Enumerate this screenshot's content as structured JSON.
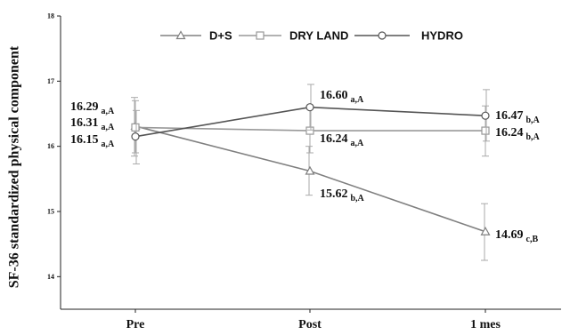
{
  "chart_data": {
    "type": "line",
    "categories": [
      "Pre",
      "Post",
      "1 mes"
    ],
    "ylabel": "SF-36 standardized physical component",
    "ylim": [
      13.5,
      18
    ],
    "yticks": [
      "14",
      "15",
      "16",
      "17",
      "18"
    ],
    "grid": false,
    "legend_position": "top-center",
    "series": [
      {
        "name": "D+S",
        "marker": "triangle",
        "color": "#808080",
        "values": [
          16.31,
          15.62,
          14.69
        ],
        "err_low": [
          15.85,
          15.25,
          14.25
        ],
        "err_high": [
          16.75,
          16.0,
          15.12
        ],
        "labels": [
          {
            "main": "16.31",
            "sub": "a,A"
          },
          {
            "main": "15.62",
            "sub": "b,A"
          },
          {
            "main": "14.69",
            "sub": "c,B"
          }
        ]
      },
      {
        "name": "DRY LAND",
        "marker": "square",
        "color": "#999999",
        "values": [
          16.29,
          16.24,
          16.24
        ],
        "err_low": [
          15.9,
          15.9,
          15.85
        ],
        "err_high": [
          16.7,
          16.6,
          16.62
        ],
        "labels": [
          {
            "main": "16.29",
            "sub": "a,A"
          },
          {
            "main": "16.24",
            "sub": "a,A"
          },
          {
            "main": "16.24",
            "sub": "b,A"
          }
        ]
      },
      {
        "name": "HYDRO",
        "marker": "circle",
        "color": "#555555",
        "values": [
          16.15,
          16.6,
          16.47
        ],
        "err_low": [
          15.73,
          16.25,
          16.08
        ],
        "err_high": [
          16.55,
          16.95,
          16.87
        ],
        "labels": [
          {
            "main": "16.15",
            "sub": "a,A"
          },
          {
            "main": "16.60",
            "sub": "a,A"
          },
          {
            "main": "16.47",
            "sub": "b,A"
          }
        ]
      }
    ]
  }
}
